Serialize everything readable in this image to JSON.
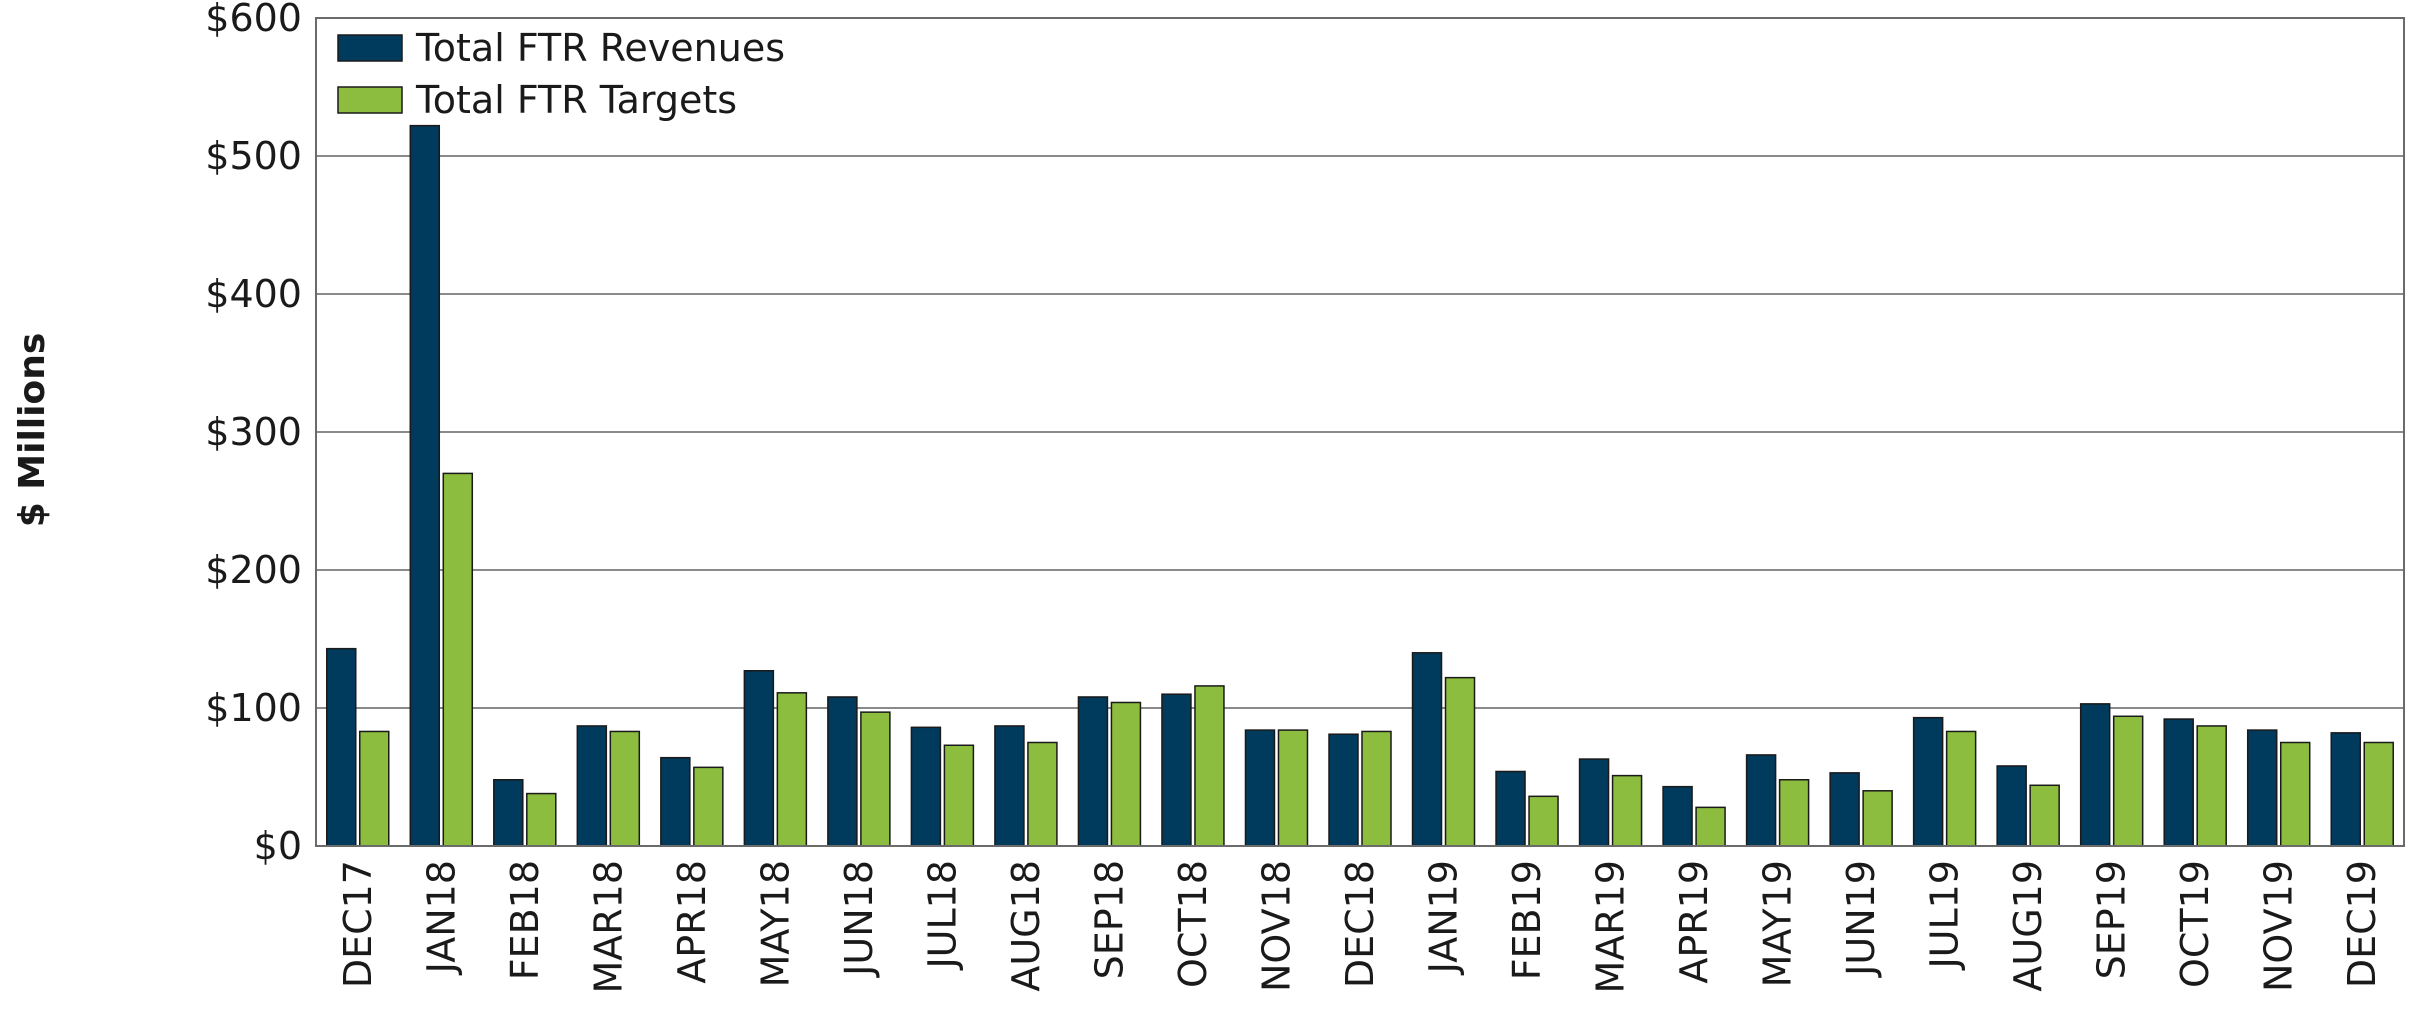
{
  "chart_data": {
    "type": "bar",
    "title": "",
    "xlabel": "",
    "ylabel": "$ Millions",
    "ylim": [
      0,
      600
    ],
    "yticks": [
      0,
      100,
      200,
      300,
      400,
      500,
      600
    ],
    "ytick_labels": [
      "$0",
      "$100",
      "$200",
      "$300",
      "$400",
      "$500",
      "$600"
    ],
    "grid": "horizontal",
    "legend_position": "top-left",
    "categories": [
      "DEC17",
      "JAN18",
      "FEB18",
      "MAR18",
      "APR18",
      "MAY18",
      "JUN18",
      "JUL18",
      "AUG18",
      "SEP18",
      "OCT18",
      "NOV18",
      "DEC18",
      "JAN19",
      "FEB19",
      "MAR19",
      "APR19",
      "MAY19",
      "JUN19",
      "JUL19",
      "AUG19",
      "SEP19",
      "OCT19",
      "NOV19",
      "DEC19"
    ],
    "series": [
      {
        "name": "Total FTR Revenues",
        "color": "#003a5c",
        "values": [
          143,
          522,
          48,
          87,
          64,
          127,
          108,
          86,
          87,
          108,
          110,
          84,
          81,
          140,
          54,
          63,
          43,
          66,
          53,
          93,
          58,
          103,
          92,
          84,
          82
        ]
      },
      {
        "name": "Total FTR Targets",
        "color": "#8cbd3f",
        "values": [
          83,
          270,
          38,
          83,
          57,
          111,
          97,
          73,
          75,
          104,
          116,
          84,
          83,
          122,
          36,
          51,
          28,
          48,
          40,
          83,
          44,
          94,
          87,
          75,
          75
        ]
      }
    ]
  }
}
